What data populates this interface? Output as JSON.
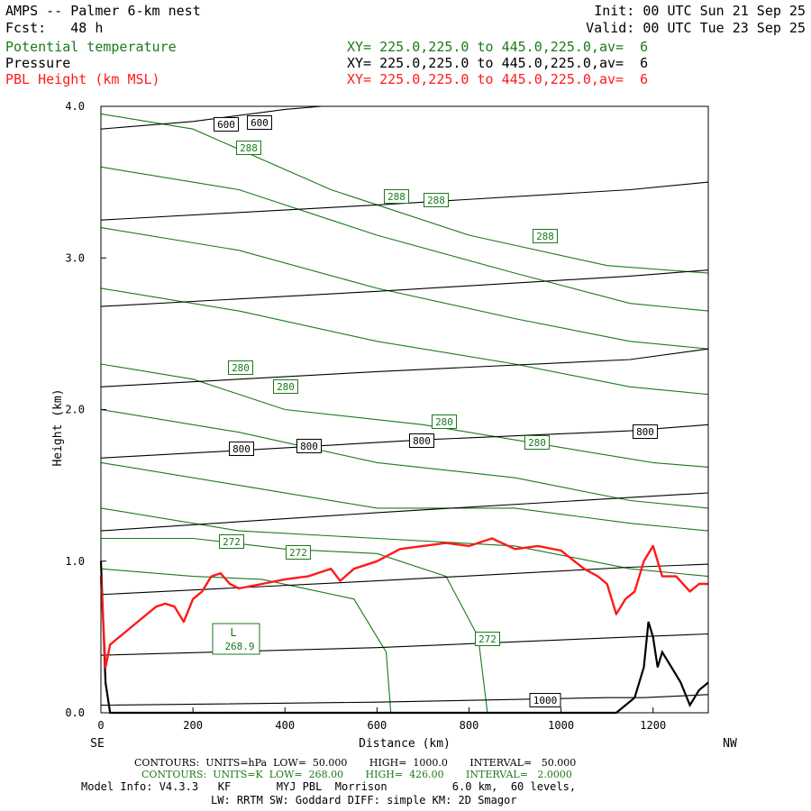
{
  "header": {
    "title": "AMPS -- Palmer 6-km nest",
    "fcst": "Fcst:   48 h",
    "init": "Init: 00 UTC Sun 21 Sep 25",
    "valid": "Valid: 00 UTC Tue 23 Sep 25",
    "fields": [
      {
        "name": "Potential temperature",
        "xy": "XY= 225.0,225.0 to 445.0,225.0,av=  6",
        "color": "#1a7a1a"
      },
      {
        "name": "Pressure",
        "xy": "XY= 225.0,225.0 to 445.0,225.0,av=  6",
        "color": "#000000"
      },
      {
        "name": "PBL Height (km MSL)",
        "xy": "XY= 225.0,225.0 to 445.0,225.0,av=  6",
        "color": "#ff1a1a"
      }
    ]
  },
  "chart_data": {
    "type": "line",
    "xlabel": "Distance (km)",
    "ylabel": "Height (km)",
    "xlim": [
      0,
      1320
    ],
    "ylim": [
      0,
      4.0
    ],
    "x_ticks": [
      0,
      200,
      400,
      600,
      800,
      1000,
      1200
    ],
    "y_ticks": [
      "0.0",
      "1.0",
      "2.0",
      "3.0",
      "4.0"
    ],
    "left_end_label": "SE",
    "right_end_label": "NW",
    "colors": {
      "theta": "#1a7a1a",
      "pressure": "#000000",
      "pbl": "#ff1a1a"
    },
    "pressure_isobars": [
      {
        "p": 1000,
        "points": [
          [
            0,
            0.05
          ],
          [
            600,
            0.07
          ],
          [
            1100,
            0.1
          ],
          [
            1180,
            0.1
          ],
          [
            1320,
            0.12
          ]
        ]
      },
      {
        "p": 950,
        "points": [
          [
            0,
            0.38
          ],
          [
            600,
            0.43
          ],
          [
            1150,
            0.5
          ],
          [
            1320,
            0.52
          ]
        ]
      },
      {
        "p": 900,
        "points": [
          [
            0,
            0.78
          ],
          [
            600,
            0.87
          ],
          [
            1150,
            0.96
          ],
          [
            1320,
            0.98
          ]
        ]
      },
      {
        "p": 850,
        "points": [
          [
            0,
            1.2
          ],
          [
            600,
            1.32
          ],
          [
            1150,
            1.42
          ],
          [
            1320,
            1.45
          ]
        ]
      },
      {
        "p": 800,
        "points": [
          [
            0,
            1.68
          ],
          [
            300,
            1.73
          ],
          [
            700,
            1.8
          ],
          [
            1150,
            1.86
          ],
          [
            1320,
            1.9
          ]
        ]
      },
      {
        "p": 750,
        "points": [
          [
            0,
            2.15
          ],
          [
            600,
            2.25
          ],
          [
            1150,
            2.33
          ],
          [
            1320,
            2.4
          ]
        ]
      },
      {
        "p": 700,
        "points": [
          [
            0,
            2.68
          ],
          [
            600,
            2.78
          ],
          [
            1150,
            2.88
          ],
          [
            1320,
            2.92
          ]
        ]
      },
      {
        "p": 650,
        "points": [
          [
            0,
            3.25
          ],
          [
            600,
            3.35
          ],
          [
            1150,
            3.45
          ],
          [
            1320,
            3.5
          ]
        ]
      },
      {
        "p": 600,
        "points": [
          [
            0,
            3.85
          ],
          [
            200,
            3.9
          ],
          [
            400,
            3.98
          ],
          [
            480,
            4.0
          ]
        ]
      }
    ],
    "theta_isentropes": [
      {
        "k": 288,
        "points": [
          [
            0,
            3.95
          ],
          [
            200,
            3.85
          ],
          [
            500,
            3.45
          ],
          [
            800,
            3.15
          ],
          [
            1100,
            2.95
          ],
          [
            1320,
            2.9
          ]
        ]
      },
      {
        "k": 286,
        "points": [
          [
            0,
            3.6
          ],
          [
            300,
            3.45
          ],
          [
            600,
            3.15
          ],
          [
            900,
            2.9
          ],
          [
            1150,
            2.7
          ],
          [
            1320,
            2.65
          ]
        ]
      },
      {
        "k": 284,
        "points": [
          [
            0,
            3.2
          ],
          [
            300,
            3.05
          ],
          [
            600,
            2.8
          ],
          [
            900,
            2.6
          ],
          [
            1150,
            2.45
          ],
          [
            1320,
            2.4
          ]
        ]
      },
      {
        "k": 282,
        "points": [
          [
            0,
            2.8
          ],
          [
            300,
            2.65
          ],
          [
            600,
            2.45
          ],
          [
            900,
            2.3
          ],
          [
            1150,
            2.15
          ],
          [
            1320,
            2.1
          ]
        ]
      },
      {
        "k": 280,
        "points": [
          [
            0,
            2.3
          ],
          [
            200,
            2.2
          ],
          [
            400,
            2.0
          ],
          [
            700,
            1.9
          ],
          [
            1000,
            1.75
          ],
          [
            1200,
            1.65
          ],
          [
            1320,
            1.62
          ]
        ]
      },
      {
        "k": 278,
        "points": [
          [
            0,
            2.0
          ],
          [
            300,
            1.85
          ],
          [
            600,
            1.65
          ],
          [
            900,
            1.55
          ],
          [
            1150,
            1.4
          ],
          [
            1320,
            1.35
          ]
        ]
      },
      {
        "k": 276,
        "points": [
          [
            0,
            1.65
          ],
          [
            300,
            1.5
          ],
          [
            600,
            1.35
          ],
          [
            900,
            1.35
          ],
          [
            1150,
            1.25
          ],
          [
            1320,
            1.2
          ]
        ]
      },
      {
        "k": 274,
        "points": [
          [
            0,
            1.35
          ],
          [
            300,
            1.2
          ],
          [
            600,
            1.15
          ],
          [
            900,
            1.1
          ],
          [
            1150,
            0.95
          ],
          [
            1320,
            0.9
          ]
        ]
      },
      {
        "k": 272,
        "points": [
          [
            0,
            1.15
          ],
          [
            200,
            1.15
          ],
          [
            400,
            1.08
          ],
          [
            600,
            1.05
          ],
          [
            750,
            0.9
          ],
          [
            820,
            0.5
          ],
          [
            840,
            0.0
          ]
        ]
      },
      {
        "k": 270,
        "points": [
          [
            0,
            0.95
          ],
          [
            200,
            0.9
          ],
          [
            350,
            0.88
          ],
          [
            550,
            0.75
          ],
          [
            620,
            0.4
          ],
          [
            630,
            0.0
          ]
        ]
      }
    ],
    "labels": {
      "pressure": [
        "600",
        "600",
        "800",
        "800",
        "800",
        "800",
        "1000"
      ],
      "theta": [
        "288",
        "288",
        "288",
        "288",
        "280",
        "280",
        "280",
        "280",
        "272",
        "272",
        "272"
      ],
      "low_marker": "L",
      "low_value": "268.9"
    },
    "pbl_height": {
      "name": "PBL Height (km MSL)",
      "x": [
        0,
        10,
        20,
        40,
        60,
        80,
        100,
        120,
        140,
        160,
        180,
        200,
        220,
        240,
        260,
        280,
        300,
        350,
        400,
        450,
        500,
        520,
        550,
        600,
        650,
        700,
        750,
        800,
        850,
        900,
        950,
        1000,
        1050,
        1080,
        1100,
        1120,
        1140,
        1160,
        1180,
        1200,
        1220,
        1250,
        1280,
        1300,
        1320
      ],
      "y": [
        0.9,
        0.3,
        0.45,
        0.5,
        0.55,
        0.6,
        0.65,
        0.7,
        0.72,
        0.7,
        0.6,
        0.75,
        0.8,
        0.9,
        0.92,
        0.85,
        0.82,
        0.85,
        0.88,
        0.9,
        0.95,
        0.87,
        0.95,
        1.0,
        1.08,
        1.1,
        1.12,
        1.1,
        1.15,
        1.08,
        1.1,
        1.07,
        0.95,
        0.9,
        0.85,
        0.65,
        0.75,
        0.8,
        1.0,
        1.1,
        0.9,
        0.9,
        0.8,
        0.85,
        0.85
      ]
    },
    "terrain": {
      "x": [
        0,
        10,
        20,
        1120,
        1140,
        1160,
        1180,
        1190,
        1200,
        1210,
        1220,
        1240,
        1260,
        1280,
        1300,
        1320
      ],
      "y": [
        1.0,
        0.2,
        0.0,
        0.0,
        0.05,
        0.1,
        0.3,
        0.6,
        0.5,
        0.3,
        0.4,
        0.3,
        0.2,
        0.05,
        0.15,
        0.2
      ]
    }
  },
  "footer": {
    "line1": "CONTOURS:  UNITS=hPa  LOW=  50.000       HIGH=  1000.0       INTERVAL=   50.000",
    "line2": "CONTOURS:  UNITS=K  LOW=  268.00       HIGH=  426.00       INTERVAL=   2.0000",
    "line3": "Model Info: V4.3.3   KF       MYJ PBL  Morrison          6.0 km,  60 levels,",
    "line4": "LW: RRTM SW: Goddard DIFF: simple KM: 2D Smagor"
  }
}
